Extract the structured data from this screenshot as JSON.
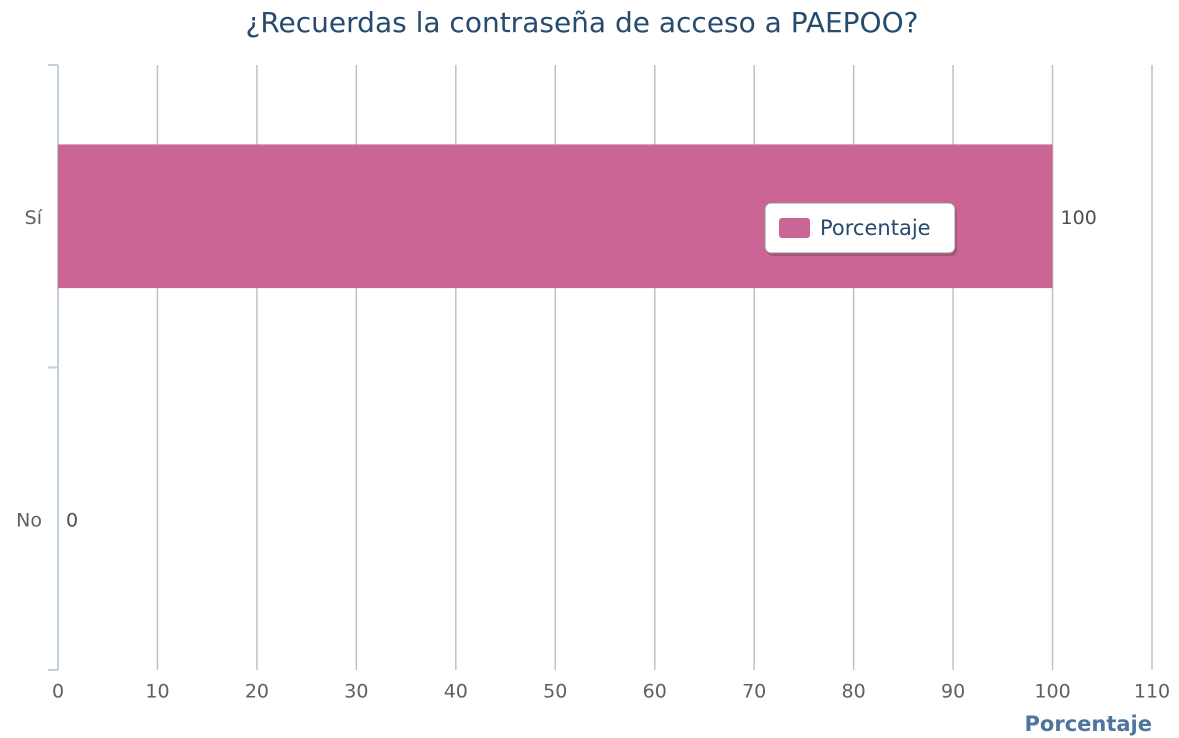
{
  "chart_data": {
    "type": "bar",
    "orientation": "horizontal",
    "title": "¿Recuerdas la contraseña de acceso a PAEPOO?",
    "categories": [
      "Sí",
      "No"
    ],
    "series": [
      {
        "name": "Porcentaje",
        "color": "#cb6595",
        "values": [
          100,
          0
        ]
      }
    ],
    "xlabel": "Porcentaje",
    "xlim": [
      0,
      110
    ],
    "xticks": [
      0,
      10,
      20,
      30,
      40,
      50,
      60,
      70,
      80,
      90,
      100,
      110
    ],
    "grid": true,
    "legend": "center-right",
    "data_labels": true
  }
}
